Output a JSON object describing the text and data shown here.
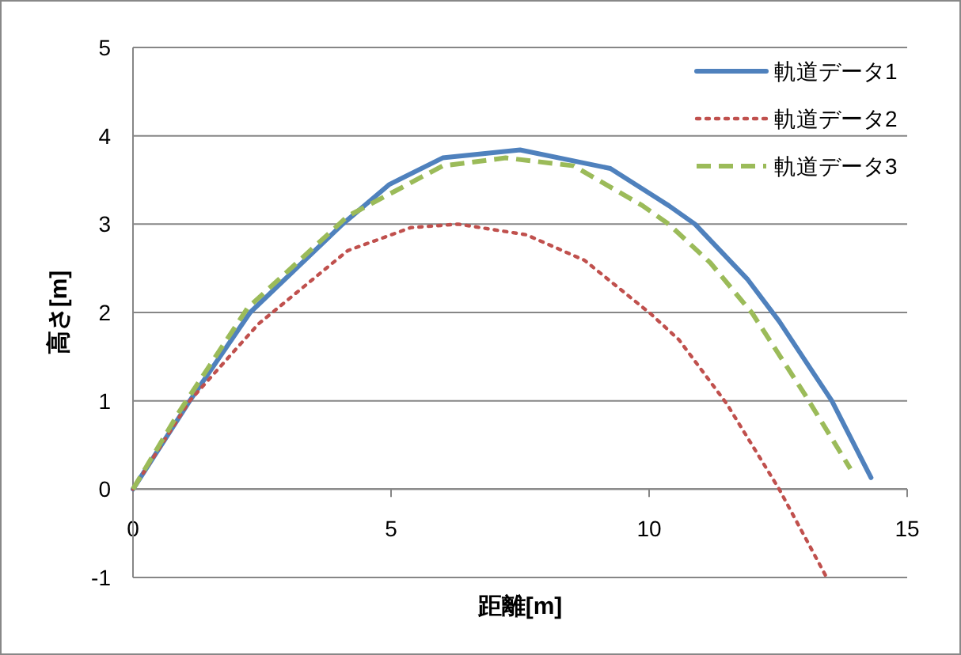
{
  "chart_data": {
    "type": "line",
    "xlabel": "距離[m]",
    "ylabel": "高さ[m]",
    "xlim": [
      0,
      15
    ],
    "xticks": [
      0,
      5,
      10,
      15
    ],
    "ylim": [
      -1,
      5
    ],
    "yticks": [
      -1,
      0,
      1,
      2,
      3,
      4,
      5
    ],
    "grid": "y",
    "legend": "top right",
    "marker": "none",
    "series": [
      {
        "name": "軌道データ1",
        "color": "#4f81bd",
        "line_style": "solid",
        "x": [
          0,
          1.1,
          2.27,
          4.06,
          4.97,
          6.0,
          7.5,
          9.25,
          10.38,
          10.89,
          11.9,
          12.52,
          13.54,
          14.3
        ],
        "values": [
          0,
          1,
          2,
          3,
          3.45,
          3.75,
          3.84,
          3.63,
          3.21,
          3.0,
          2.38,
          1.9,
          1.0,
          0.13
        ]
      },
      {
        "name": "軌道データ2",
        "color": "#c0504d",
        "line_style": "dotted",
        "x": [
          0,
          1.1,
          2.43,
          4.16,
          5.38,
          6.3,
          7.62,
          8.75,
          10.02,
          10.58,
          11.5,
          12.52,
          13.44
        ],
        "values": [
          0,
          1,
          1.87,
          2.7,
          2.96,
          3.0,
          2.88,
          2.59,
          1.99,
          1.69,
          0.97,
          0,
          -1.0
        ]
      },
      {
        "name": "軌道データ3",
        "color": "#9bbb59",
        "line_style": "dashed",
        "x": [
          0,
          0.9,
          2.22,
          4.16,
          6.0,
          7.22,
          8.54,
          9.87,
          10.38,
          11.19,
          12.0,
          13.03,
          13.9
        ],
        "values": [
          0,
          0.88,
          2.05,
          3.09,
          3.66,
          3.75,
          3.66,
          3.21,
          3.0,
          2.56,
          1.99,
          1.06,
          0.23
        ]
      }
    ]
  }
}
